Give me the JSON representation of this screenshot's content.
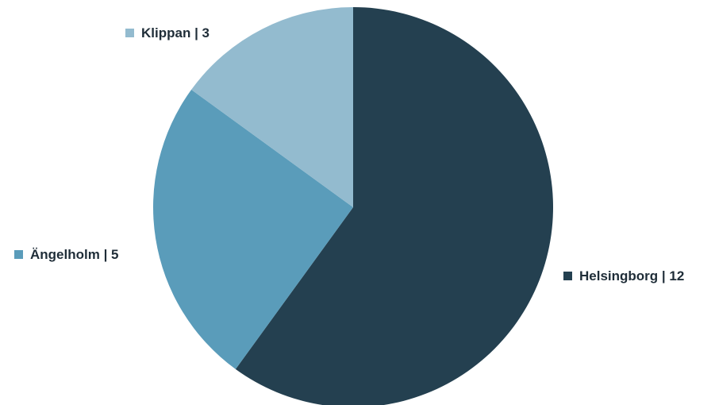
{
  "chart_data": {
    "type": "pie",
    "title": "",
    "slices": [
      {
        "label": "Helsingborg",
        "value": 12,
        "color": "#244050"
      },
      {
        "label": "Ängelholm",
        "value": 5,
        "color": "#5a9cba"
      },
      {
        "label": "Klippan",
        "value": 3,
        "color": "#93bbcf"
      }
    ],
    "start_angle": "12 o'clock",
    "direction": "clockwise",
    "label_separator": " | ",
    "legend": "labels-outside-slices"
  }
}
